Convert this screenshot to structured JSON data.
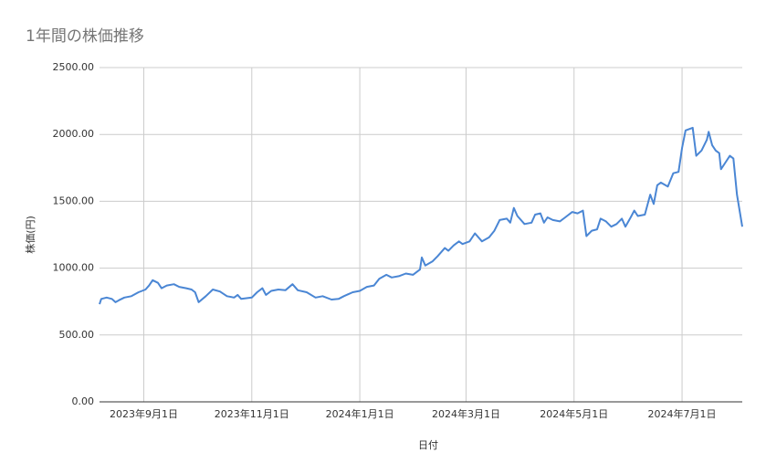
{
  "chart_data": {
    "type": "line",
    "title": "1年間の株価推移",
    "x_label": "日付",
    "y_label": "株価(円)",
    "x": [
      "2023-08-07",
      "2023-08-08",
      "2023-08-11",
      "2023-08-14",
      "2023-08-16",
      "2023-08-18",
      "2023-08-21",
      "2023-08-25",
      "2023-08-29",
      "2023-09-02",
      "2023-09-04",
      "2023-09-06",
      "2023-09-09",
      "2023-09-11",
      "2023-09-14",
      "2023-09-18",
      "2023-09-21",
      "2023-09-25",
      "2023-09-28",
      "2023-09-30",
      "2023-10-02",
      "2023-10-06",
      "2023-10-10",
      "2023-10-14",
      "2023-10-18",
      "2023-10-22",
      "2023-10-24",
      "2023-10-26",
      "2023-11-01",
      "2023-11-04",
      "2023-11-07",
      "2023-11-09",
      "2023-11-12",
      "2023-11-16",
      "2023-11-20",
      "2023-11-24",
      "2023-11-27",
      "2023-12-02",
      "2023-12-07",
      "2023-12-11",
      "2023-12-16",
      "2023-12-20",
      "2023-12-23",
      "2023-12-28",
      "2024-01-01",
      "2024-01-05",
      "2024-01-09",
      "2024-01-12",
      "2024-01-16",
      "2024-01-19",
      "2024-01-23",
      "2024-01-27",
      "2024-01-31",
      "2024-02-04",
      "2024-02-05",
      "2024-02-07",
      "2024-02-11",
      "2024-02-14",
      "2024-02-18",
      "2024-02-20",
      "2024-02-23",
      "2024-02-26",
      "2024-02-28",
      "2024-03-03",
      "2024-03-06",
      "2024-03-10",
      "2024-03-14",
      "2024-03-17",
      "2024-03-20",
      "2024-03-24",
      "2024-03-26",
      "2024-03-28",
      "2024-03-30",
      "2024-04-03",
      "2024-04-07",
      "2024-04-09",
      "2024-04-12",
      "2024-04-14",
      "2024-04-16",
      "2024-04-19",
      "2024-04-23",
      "2024-04-26",
      "2024-04-30",
      "2024-05-03",
      "2024-05-06",
      "2024-05-08",
      "2024-05-11",
      "2024-05-14",
      "2024-05-16",
      "2024-05-19",
      "2024-05-22",
      "2024-05-25",
      "2024-05-28",
      "2024-05-30",
      "2024-06-02",
      "2024-06-04",
      "2024-06-06",
      "2024-06-10",
      "2024-06-13",
      "2024-06-15",
      "2024-06-17",
      "2024-06-19",
      "2024-06-23",
      "2024-06-26",
      "2024-06-29",
      "2024-07-01",
      "2024-07-03",
      "2024-07-07",
      "2024-07-09",
      "2024-07-12",
      "2024-07-15",
      "2024-07-16",
      "2024-07-18",
      "2024-07-20",
      "2024-07-22",
      "2024-07-23",
      "2024-07-26",
      "2024-07-28",
      "2024-07-30",
      "2024-08-01",
      "2024-08-04"
    ],
    "series": [
      {
        "name": "株価",
        "color": "#4a86d4",
        "values": [
          730,
          770,
          780,
          770,
          745,
          760,
          780,
          790,
          820,
          840,
          870,
          910,
          890,
          850,
          870,
          880,
          860,
          850,
          840,
          820,
          745,
          790,
          840,
          825,
          790,
          780,
          800,
          770,
          780,
          820,
          850,
          800,
          830,
          840,
          835,
          880,
          835,
          820,
          780,
          790,
          765,
          770,
          790,
          820,
          830,
          860,
          870,
          920,
          950,
          930,
          940,
          960,
          950,
          990,
          1080,
          1020,
          1050,
          1090,
          1150,
          1130,
          1170,
          1200,
          1180,
          1200,
          1260,
          1200,
          1230,
          1280,
          1360,
          1370,
          1340,
          1450,
          1390,
          1330,
          1340,
          1400,
          1410,
          1340,
          1380,
          1360,
          1350,
          1380,
          1420,
          1410,
          1430,
          1240,
          1280,
          1290,
          1370,
          1350,
          1310,
          1330,
          1370,
          1310,
          1380,
          1430,
          1390,
          1400,
          1550,
          1480,
          1620,
          1640,
          1610,
          1710,
          1720,
          1900,
          2030,
          2050,
          1840,
          1880,
          1960,
          2020,
          1920,
          1880,
          1860,
          1740,
          1800,
          1840,
          1820,
          1550,
          1310
        ]
      }
    ],
    "xlim": [
      "2023-08-07",
      "2024-08-04"
    ],
    "xticks": [
      {
        "value": "2023-09-01",
        "label": "2023年9月1日"
      },
      {
        "value": "2023-11-01",
        "label": "2023年11月1日"
      },
      {
        "value": "2024-01-01",
        "label": "2024年1月1日"
      },
      {
        "value": "2024-03-01",
        "label": "2024年3月1日"
      },
      {
        "value": "2024-05-01",
        "label": "2024年5月1日"
      },
      {
        "value": "2024-07-01",
        "label": "2024年7月1日"
      }
    ],
    "ylim": [
      0,
      2500
    ],
    "yticks": [
      {
        "value": 0,
        "label": "0.00"
      },
      {
        "value": 500,
        "label": "500.00"
      },
      {
        "value": 1000,
        "label": "1000.00"
      },
      {
        "value": 1500,
        "label": "1500.00"
      },
      {
        "value": 2000,
        "label": "2000.00"
      },
      {
        "value": 2500,
        "label": "2500.00"
      }
    ],
    "grid": true
  }
}
